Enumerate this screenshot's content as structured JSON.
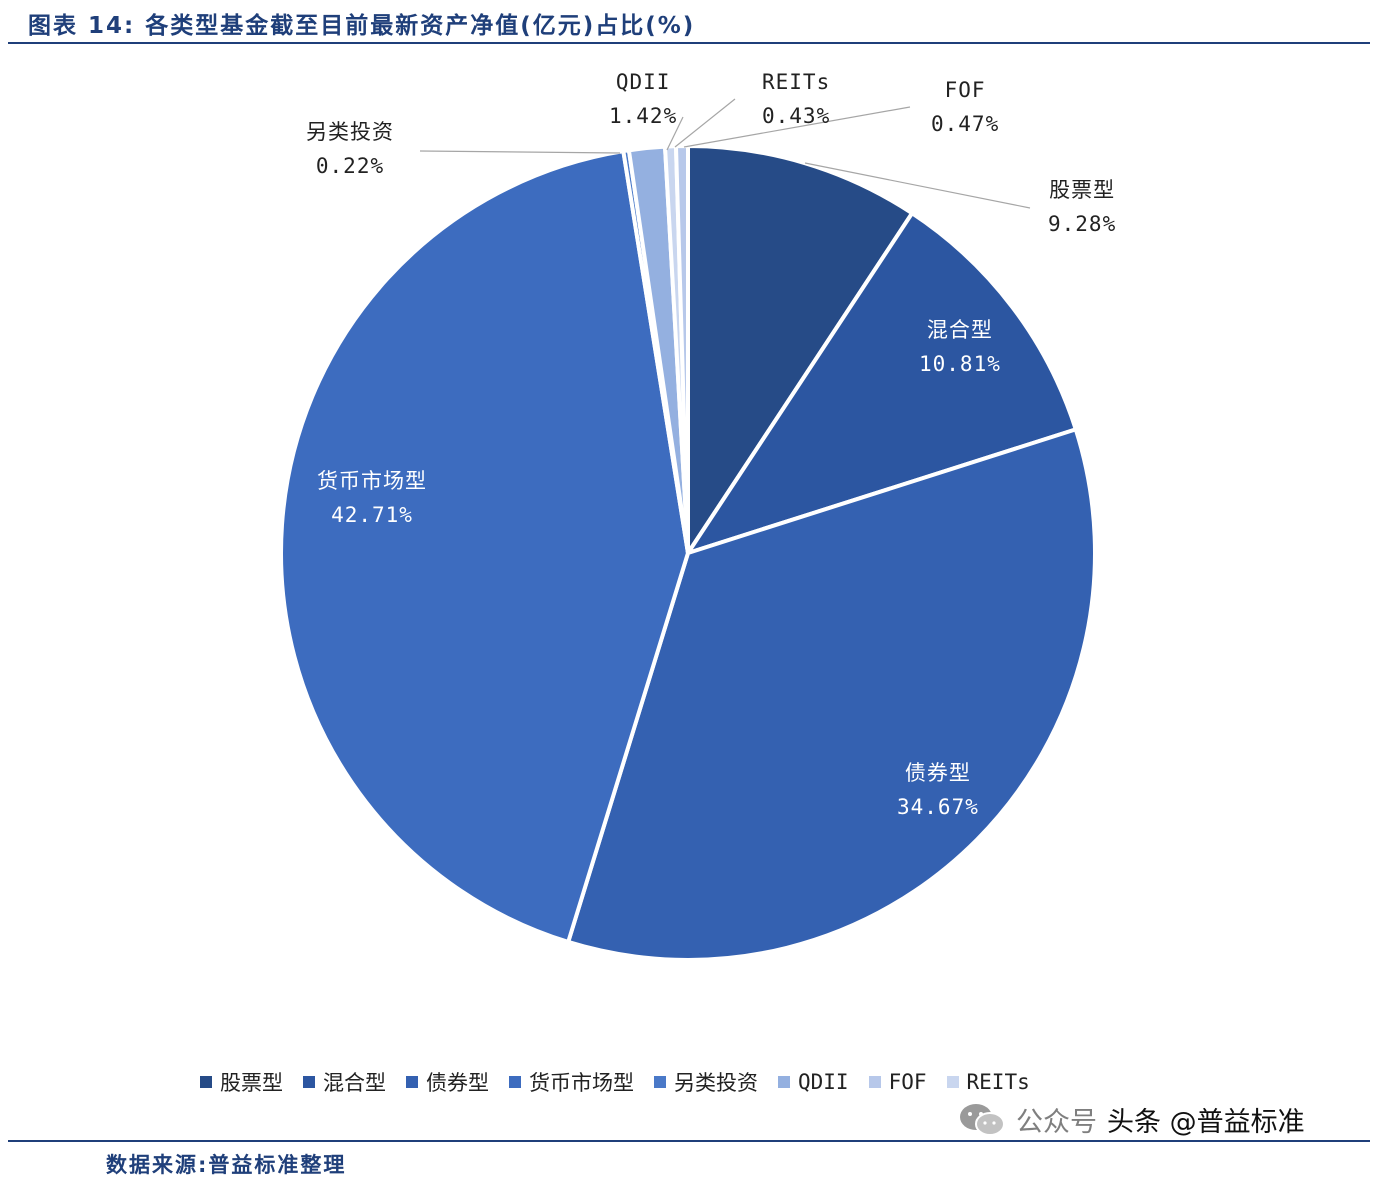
{
  "header": {
    "title": "图表 14:  各类型基金截至目前最新资产净值(亿元)占比(%)"
  },
  "footer": {
    "source": "数据来源:普益标准整理"
  },
  "watermark": {
    "prefix": "公众号",
    "text": "头条 @普益标准"
  },
  "chart_data": {
    "type": "pie",
    "title": "",
    "categories": [
      "股票型",
      "混合型",
      "债券型",
      "货币市场型",
      "另类投资",
      "QDII",
      "FOF",
      "REITs"
    ],
    "values": [
      9.28,
      10.81,
      34.67,
      42.71,
      0.22,
      1.42,
      0.47,
      0.43
    ],
    "value_labels": [
      "9.28%",
      "10.81%",
      "34.67%",
      "42.71%",
      "0.22%",
      "1.42%",
      "0.47%",
      "0.43%"
    ],
    "slice_order": [
      0,
      1,
      2,
      3,
      4,
      5,
      7,
      6
    ],
    "colors": [
      "#264b87",
      "#2c56a1",
      "#3461b1",
      "#3d6cbf",
      "#4a79c8",
      "#94b0e0",
      "#b7c8ea",
      "#c9d6ef"
    ],
    "legend": [
      "股票型",
      "混合型",
      "债券型",
      "货币市场型",
      "另类投资",
      "QDII",
      "FOF",
      "REITs"
    ],
    "legend_placement": "bottom"
  }
}
